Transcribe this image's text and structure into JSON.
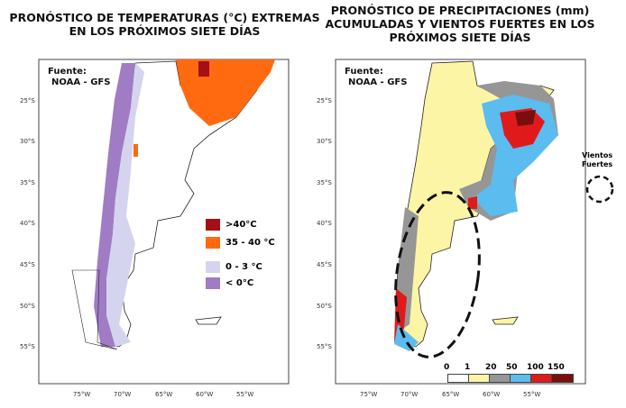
{
  "left_panel": {
    "title_line1": "PRONÓSTICO DE TEMPERATURAS (°C) EXTREMAS",
    "title_line2": "EN LOS PRÓXIMOS SIETE DÍAS",
    "source_line1": "Fuente:",
    "source_line2": "NOAA - GFS",
    "legend": [
      {
        "label": ">40°C",
        "color": "#a50f15"
      },
      {
        "label": "35 - 40 °C",
        "color": "#ff6a10"
      },
      {
        "label": "0 - 3 °C",
        "color": "#d4d4ee"
      },
      {
        "label": "< 0°C",
        "color": "#a07cc5"
      }
    ]
  },
  "right_panel": {
    "title_line1": "PRONÓSTICO DE PRECIPITACIONES (mm)",
    "title_line2": "ACUMULADAS Y VIENTOS FUERTES EN LOS",
    "title_line3": "PRÓXIMOS SIETE DÍAS",
    "source_line1": "Fuente:",
    "source_line2": "NOAA - GFS",
    "colorbar_ticks": [
      "0",
      "1",
      "20",
      "50",
      "100",
      "150"
    ],
    "colorbar_colors": [
      "#ffffff",
      "#fdf5a6",
      "#969696",
      "#5bbcf0",
      "#e01a1a",
      "#7a0e0e"
    ],
    "wind_legend_line1": "Vientos",
    "wind_legend_line2": "Fuertes"
  },
  "axes": {
    "lat_labels": [
      "25°S",
      "30°S",
      "35°S",
      "40°S",
      "45°S",
      "50°S",
      "55°S"
    ],
    "lon_labels": [
      "75°W",
      "70°W",
      "65°W",
      "60°W",
      "55°W"
    ]
  }
}
